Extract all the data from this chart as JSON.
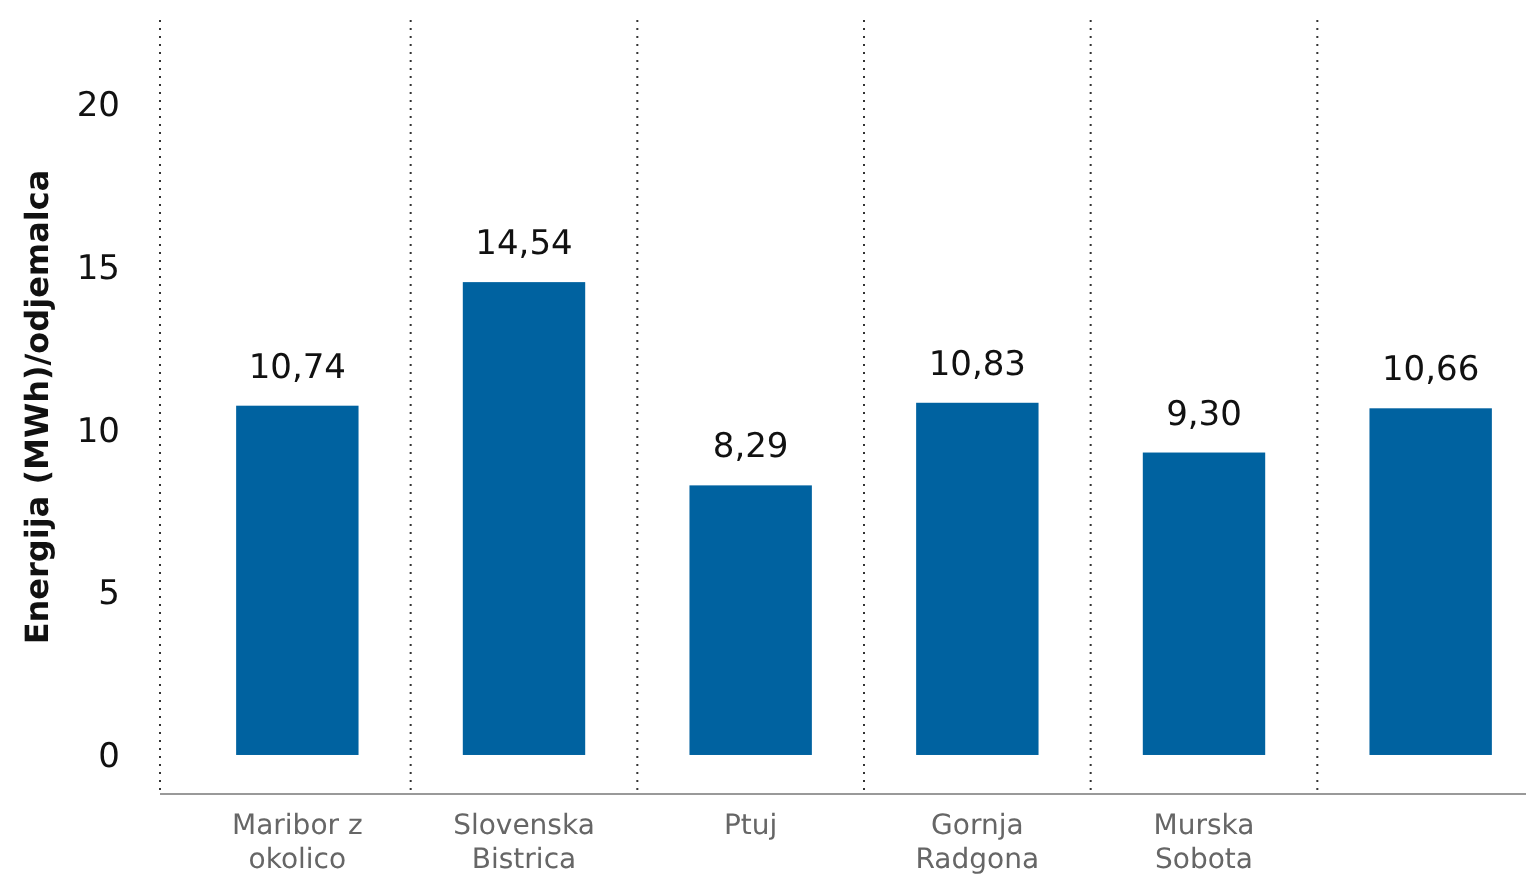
{
  "chart_data": {
    "type": "bar",
    "ylabel": "Energija (MWh)/odjemalca",
    "categories": [
      "Maribor z okolico",
      "Slovenska Bistrica",
      "Ptuj",
      "Gornja Radgona",
      "Murska Sobota",
      null
    ],
    "values": [
      10.74,
      14.54,
      8.29,
      10.83,
      9.3,
      10.66
    ],
    "value_labels": [
      "10,74",
      "14,54",
      "8,29",
      "10,83",
      "9,30",
      "10,66"
    ],
    "color": "#0062a0",
    "ylim": [
      -1.2,
      22.6
    ],
    "yticks": [
      0,
      5,
      10,
      15,
      20
    ],
    "grid": "x"
  }
}
